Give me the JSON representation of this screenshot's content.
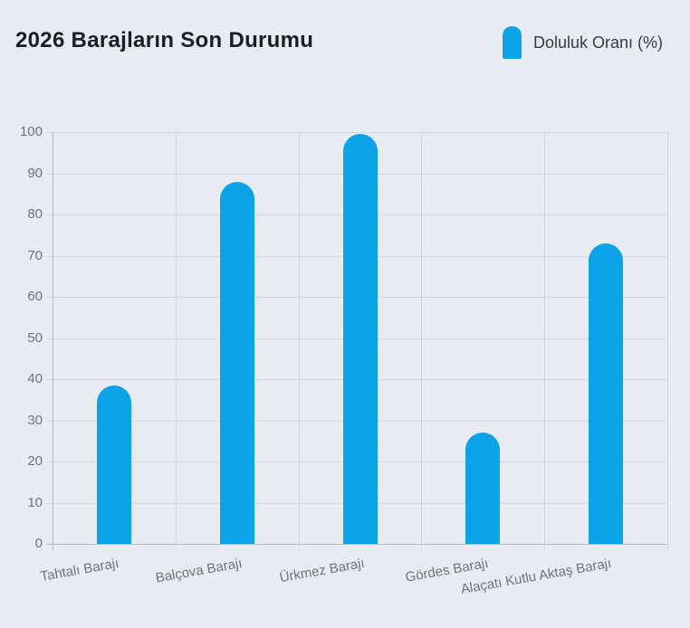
{
  "header": {
    "title": "2026 Barajların Son Durumu",
    "legend": {
      "label": "Doluluk Oranı (%)",
      "color": "#0aa3e8"
    }
  },
  "chart_data": {
    "type": "bar",
    "title": "2026 Barajların Son Durumu",
    "categories": [
      "Tahtalı Barajı",
      "Balçova Barajı",
      "Ürkmez Barajı",
      "Gördes Barajı",
      "Alaçatı Kutlu Aktaş Barajı"
    ],
    "series": [
      {
        "name": "Doluluk Oranı (%)",
        "values": [
          38.5,
          88,
          99.5,
          27,
          73
        ]
      }
    ],
    "xlabel": "",
    "ylabel": "",
    "ylim": [
      0,
      100
    ],
    "ytick_step": 10,
    "yticks": [
      0,
      10,
      20,
      30,
      40,
      50,
      60,
      70,
      80,
      90,
      100
    ],
    "grid": true,
    "legend_position": "top-right",
    "bar_color": "#0aa3e8",
    "x_label_rotation_deg": -10
  },
  "colors": {
    "background": "#e9ebf2",
    "bar": "#0aa3e8",
    "gridline": "#d3d6dd",
    "axis": "#b5b9c1",
    "tick_label_text": "#6d7380",
    "title_text": "#1a1e26",
    "legend_text": "#343a45"
  }
}
